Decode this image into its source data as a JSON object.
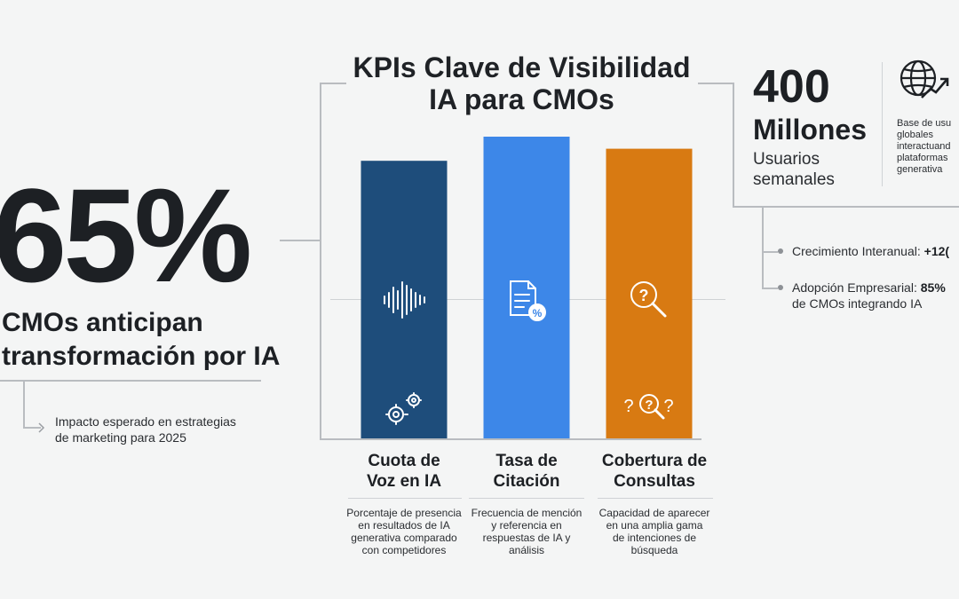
{
  "title": {
    "line1": "KPIs Clave de Visibilidad",
    "line2": "IA para CMOs"
  },
  "left_stat": {
    "value": "65%",
    "label_line1": "CMOs anticipan",
    "label_line2": "transformación por IA",
    "note_line1": "Impacto esperado en estrategias",
    "note_line2": "de marketing para 2025"
  },
  "right_stat": {
    "value": "400",
    "unit": "Millones",
    "label_line1": "Usuarios",
    "label_line2": "semanales",
    "icon": "globe-growth-icon",
    "desc_lines": [
      "Base de usu",
      "globales",
      "interactuand",
      "plataformas",
      "generativa"
    ]
  },
  "bullets": [
    {
      "text": "Crecimiento Interanual: ",
      "bold": "+12("
    },
    {
      "text": "Adopción Empresarial: ",
      "bold": "85%",
      "line2": "de CMOs integrando IA"
    }
  ],
  "chart_data": {
    "type": "bar",
    "categories": [
      "Cuota de Voz en IA",
      "Tasa de Citación",
      "Cobertura de Consultas"
    ],
    "label_lines": [
      [
        "Cuota de",
        "Voz en IA"
      ],
      [
        "Tasa de",
        "Citación"
      ],
      [
        "Cobertura de",
        "Consultas"
      ]
    ],
    "values": [
      92,
      100,
      96
    ],
    "colors": [
      "#1e4d7b",
      "#3d87e8",
      "#d87a12"
    ],
    "icons": [
      [
        "sound-wave-icon",
        "gears-icon"
      ],
      [
        "document-percent-icon"
      ],
      [
        "magnifier-question-icon",
        "question-search-icon"
      ]
    ],
    "descriptions": [
      [
        "Porcentaje de presencia",
        "en resultados de IA",
        "generativa comparado",
        "con competidores"
      ],
      [
        "Frecuencia de mención",
        "y referencia en",
        "respuestas de IA y",
        "análisis"
      ],
      [
        "Capacidad de aparecer",
        "en una amplia gama",
        "de intenciones de",
        "búsqueda"
      ]
    ],
    "ylim": [
      0,
      100
    ],
    "grid": false,
    "legend": "none"
  }
}
